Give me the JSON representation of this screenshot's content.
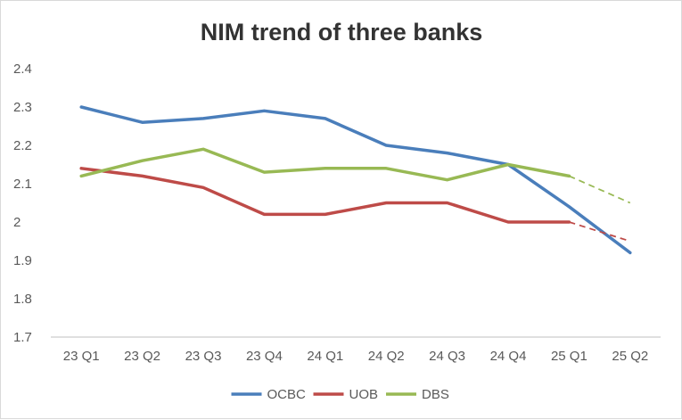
{
  "chart_data": {
    "type": "line",
    "title": "NIM trend of three banks",
    "xlabel": "",
    "ylabel": "",
    "categories": [
      "23 Q1",
      "23 Q2",
      "23 Q3",
      "23 Q4",
      "24 Q1",
      "24 Q2",
      "24 Q3",
      "24 Q4",
      "25 Q1",
      "25 Q2"
    ],
    "ylim": [
      1.7,
      2.4
    ],
    "yticks": [
      "1.7",
      "1.8",
      "1.9",
      "2",
      "2.1",
      "2.2",
      "2.3",
      "2.4"
    ],
    "grid": false,
    "legend_position": "bottom",
    "series": [
      {
        "name": "OCBC",
        "color": "#4A7EBB",
        "values": [
          2.3,
          2.26,
          2.27,
          2.29,
          2.27,
          2.2,
          2.18,
          2.15,
          2.04,
          1.92
        ]
      },
      {
        "name": "UOB",
        "color": "#BE4B48",
        "values": [
          2.14,
          2.12,
          2.09,
          2.02,
          2.02,
          2.05,
          2.05,
          2.0,
          2.0,
          1.95
        ],
        "forecast_from_index": 8
      },
      {
        "name": "DBS",
        "color": "#98B954",
        "values": [
          2.12,
          2.16,
          2.19,
          2.13,
          2.14,
          2.14,
          2.11,
          2.15,
          2.12,
          2.05
        ],
        "forecast_from_index": 8
      }
    ]
  }
}
